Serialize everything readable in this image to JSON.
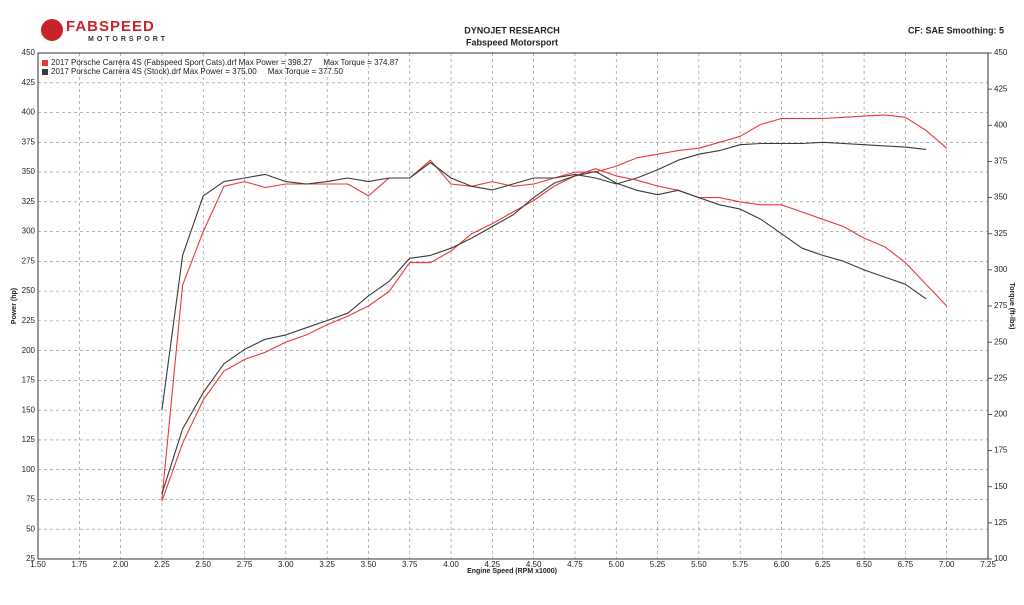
{
  "chart_data": {
    "type": "line",
    "logo": {
      "brand": "FABSPEED",
      "sub": "MOTORSPORT"
    },
    "title": "DYNOJET RESEARCH",
    "subtitle": "Fabspeed Motorsport",
    "settings_text": "CF: SAE  Smoothing: 5",
    "xlabel": "Engine Speed (RPM x1000)",
    "ylabel": "Power (hp)",
    "y2label": "Torque (ft-lbs)",
    "legend": [
      {
        "text": "2017 Porsche Carrera 4S (Fabspeed Sport Cats).drf Max Power = 398.27     Max Torque = 374.87",
        "color": "#e8393a"
      },
      {
        "text": "2017 Porsche Carrera 4S (Stock).drf Max Power = 375.00     Max Torque = 377.50",
        "color": "#3a3a3a"
      }
    ],
    "grid": true,
    "xlim": [
      1.5,
      7.25
    ],
    "ylim": [
      25,
      450
    ],
    "y2lim": [
      100,
      450
    ],
    "xticks": [
      {
        "value": 1.5,
        "label": "1.50"
      },
      1.75,
      {
        "value": 2,
        "label": "2.00"
      },
      2.25,
      {
        "value": 2.5,
        "label": "2.50"
      },
      2.75,
      {
        "value": 3,
        "label": "3.00"
      },
      3.25,
      {
        "value": 3.5,
        "label": "3.50"
      },
      3.75,
      {
        "value": 4,
        "label": "4.00"
      },
      4.25,
      {
        "value": 4.5,
        "label": "4.50"
      },
      4.75,
      {
        "value": 5,
        "label": "5.00"
      },
      5.25,
      {
        "value": 5.5,
        "label": "5.50"
      },
      5.75,
      {
        "value": 6,
        "label": "6.00"
      },
      6.25,
      {
        "value": 6.5,
        "label": "6.50"
      },
      6.75,
      {
        "value": 7,
        "label": "7.00"
      },
      7.25
    ],
    "yticks": [
      25,
      50,
      75,
      100,
      125,
      150,
      175,
      200,
      225,
      250,
      275,
      300,
      325,
      350,
      375,
      400,
      425,
      450
    ],
    "y2ticks": [
      100,
      125,
      150,
      175,
      200,
      225,
      250,
      275,
      300,
      325,
      350,
      375,
      400,
      425,
      450
    ],
    "x": [
      2.25,
      2.375,
      2.5,
      2.625,
      2.75,
      2.875,
      3.0,
      3.125,
      3.25,
      3.375,
      3.5,
      3.625,
      3.75,
      3.875,
      4.0,
      4.125,
      4.25,
      4.375,
      4.5,
      4.625,
      4.75,
      4.875,
      5.0,
      5.125,
      5.25,
      5.375,
      5.5,
      5.625,
      5.75,
      5.875,
      6.0,
      6.125,
      6.25,
      6.375,
      6.5,
      6.625,
      6.75,
      6.875,
      7.0
    ],
    "series": [
      {
        "color": "#e8393a",
        "axis": "y",
        "values": [
          75,
          255,
          300,
          338,
          342,
          337,
          340,
          340,
          340,
          340,
          330,
          345,
          345,
          360,
          340,
          338,
          342,
          338,
          340,
          345,
          350,
          350,
          355,
          362,
          365,
          368,
          370,
          375,
          380,
          390,
          395,
          395,
          395,
          396,
          397,
          398,
          396,
          385,
          370
        ]
      },
      {
        "color": "#3a3a3a",
        "axis": "y",
        "values": [
          150,
          280,
          330,
          342,
          345,
          348,
          342,
          340,
          342,
          345,
          342,
          345,
          345,
          358,
          345,
          338,
          335,
          340,
          345,
          345,
          348,
          345,
          340,
          345,
          352,
          360,
          365,
          368,
          373,
          374,
          374,
          374,
          375,
          374,
          373,
          372,
          371,
          369,
          null
        ]
      },
      {
        "color": "#e8393a",
        "axis": "y2",
        "values": [
          140,
          180,
          210,
          230,
          238,
          243,
          250,
          255,
          262,
          268,
          275,
          285,
          305,
          305,
          313,
          325,
          332,
          340,
          348,
          358,
          365,
          370,
          365,
          362,
          358,
          355,
          350,
          350,
          347,
          345,
          345,
          340,
          335,
          330,
          322,
          316,
          305,
          290,
          275
        ]
      },
      {
        "color": "#3a3a3a",
        "axis": "y2",
        "values": [
          145,
          190,
          215,
          235,
          245,
          252,
          255,
          260,
          265,
          270,
          282,
          292,
          308,
          310,
          315,
          322,
          330,
          338,
          350,
          360,
          365,
          368,
          360,
          355,
          352,
          355,
          350,
          345,
          342,
          335,
          325,
          315,
          310,
          306,
          300,
          295,
          290,
          280,
          null
        ]
      }
    ]
  }
}
